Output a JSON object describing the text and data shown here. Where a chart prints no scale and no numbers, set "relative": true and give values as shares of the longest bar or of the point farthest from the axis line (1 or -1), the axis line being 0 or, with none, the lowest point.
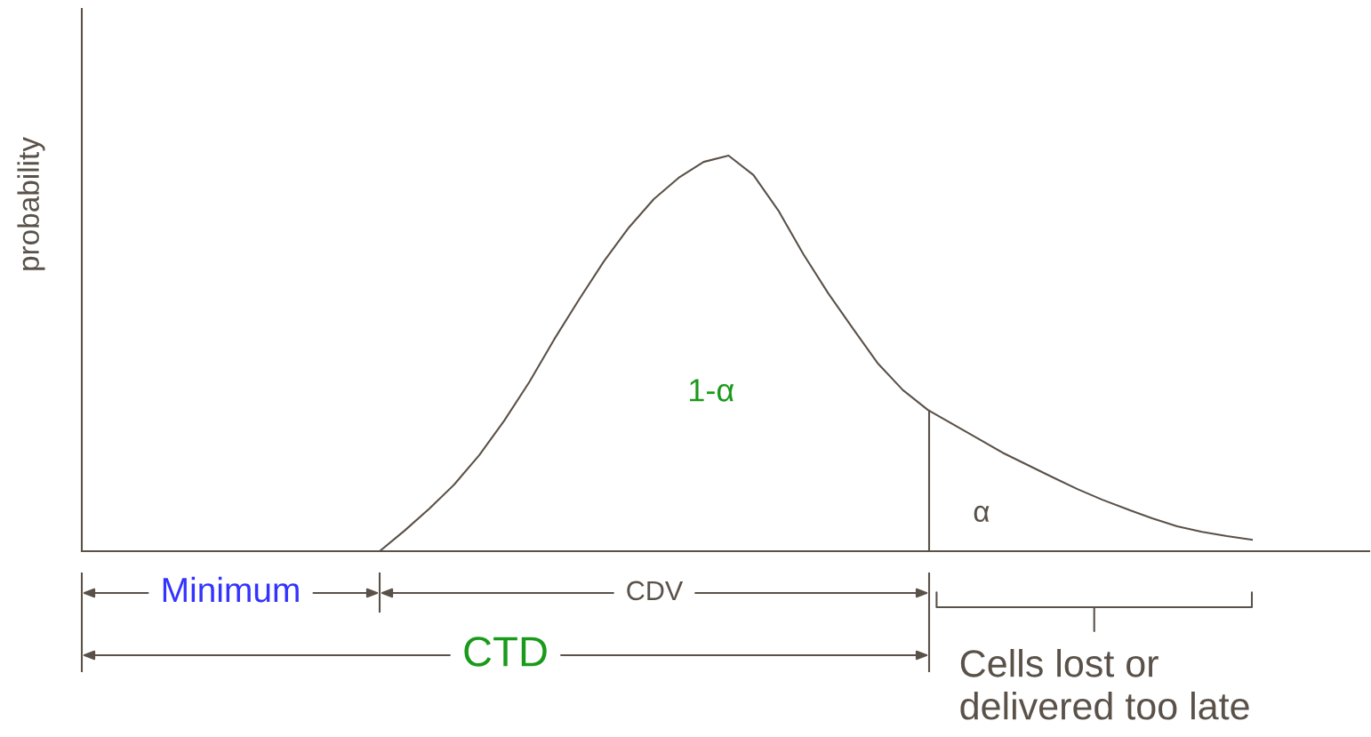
{
  "chart_data": {
    "type": "line",
    "relative": true,
    "marker": "none",
    "line_style": "solid",
    "categories": [
      null,
      null,
      null,
      null,
      null,
      null,
      null,
      null,
      null,
      null,
      null,
      null,
      null,
      null,
      null,
      null,
      null,
      null,
      null,
      null,
      null,
      null,
      null,
      null,
      null,
      null,
      null,
      null,
      null,
      null,
      null,
      null,
      null,
      null,
      null,
      null
    ],
    "series": [
      {
        "color": "#5a5149",
        "values": [
          0,
          0.052,
          0.108,
          0.169,
          0.243,
          0.33,
          0.427,
          0.535,
          0.636,
          0.733,
          0.818,
          0.89,
          0.944,
          0.984,
          1,
          0.951,
          0.861,
          0.751,
          0.652,
          0.562,
          0.474,
          0.407,
          0.357,
          0.321,
          0.285,
          0.249,
          0.218,
          0.187,
          0.157,
          0.13,
          0.106,
          0.083,
          0.063,
          0.049,
          0.038,
          0.029
        ]
      }
    ],
    "annotations": [
      "Minimum",
      "CDV",
      "CTD",
      "Cells lost or\ndelivered too late",
      "1-α",
      "α",
      "probability"
    ]
  }
}
